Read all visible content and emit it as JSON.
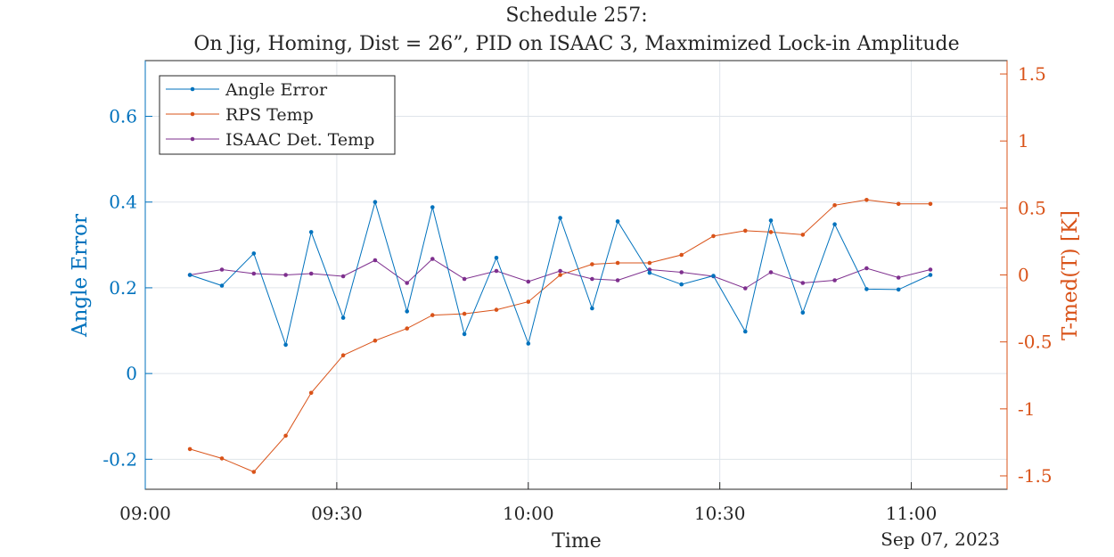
{
  "chart_data": {
    "type": "line",
    "title": "Schedule 257:",
    "subtitle": "On Jig, Homing, Dist = 26”, PID on ISAAC 3, Maxmimized Lock-in Amplitude",
    "xlabel": "Time",
    "date_label": "Sep 07, 2023",
    "ylabel_left": "Angle Error",
    "ylabel_right": "T-med(T) [K]",
    "x_ticks": [
      "09:00",
      "09:30",
      "10:00",
      "10:30",
      "11:00"
    ],
    "y_ticks_left": [
      "-0.2",
      "0",
      "0.2",
      "0.4",
      "0.6"
    ],
    "y_ticks_right": [
      "-1.5",
      "-1",
      "-0.5",
      "0",
      "0.5",
      "1",
      "1.5"
    ],
    "xlim": [
      "09:00",
      "11:15"
    ],
    "ylim_left": [
      -0.27,
      0.73
    ],
    "ylim_right": [
      -1.6,
      1.6
    ],
    "grid": true,
    "legend_position": "top-left",
    "x": [
      "09:07",
      "09:12",
      "09:17",
      "09:22",
      "09:26",
      "09:31",
      "09:36",
      "09:41",
      "09:45",
      "09:50",
      "09:55",
      "10:00",
      "10:05",
      "10:10",
      "10:14",
      "10:19",
      "10:24",
      "10:29",
      "10:34",
      "10:38",
      "10:43",
      "10:48",
      "10:53",
      "10:58",
      "11:03"
    ],
    "series": [
      {
        "name": "Angle Error",
        "axis": "left",
        "color": "#0072BD",
        "values": [
          0.23,
          0.205,
          0.28,
          0.067,
          0.33,
          0.13,
          0.4,
          0.145,
          0.388,
          0.092,
          0.27,
          0.07,
          0.363,
          0.152,
          0.355,
          0.235,
          0.208,
          0.228,
          0.098,
          0.357,
          0.142,
          0.348,
          0.197,
          0.196,
          0.23
        ]
      },
      {
        "name": "RPS Temp",
        "axis": "right",
        "color": "#D95319",
        "values": [
          -1.3,
          -1.37,
          -1.47,
          -1.2,
          -0.88,
          -0.6,
          -0.49,
          -0.4,
          -0.3,
          -0.29,
          -0.26,
          -0.2,
          0.0,
          0.08,
          0.09,
          0.09,
          0.15,
          0.29,
          0.33,
          0.32,
          0.3,
          0.52,
          0.56,
          0.53,
          0.53
        ]
      },
      {
        "name": "ISAAC Det. Temp",
        "axis": "right",
        "color": "#7E2F8E",
        "values": [
          0.0,
          0.04,
          0.01,
          0.0,
          0.01,
          -0.01,
          0.11,
          -0.06,
          0.12,
          -0.03,
          0.03,
          -0.05,
          0.03,
          -0.03,
          -0.04,
          0.04,
          0.02,
          -0.01,
          -0.1,
          0.02,
          -0.06,
          -0.04,
          0.05,
          -0.02,
          0.04
        ]
      }
    ]
  }
}
